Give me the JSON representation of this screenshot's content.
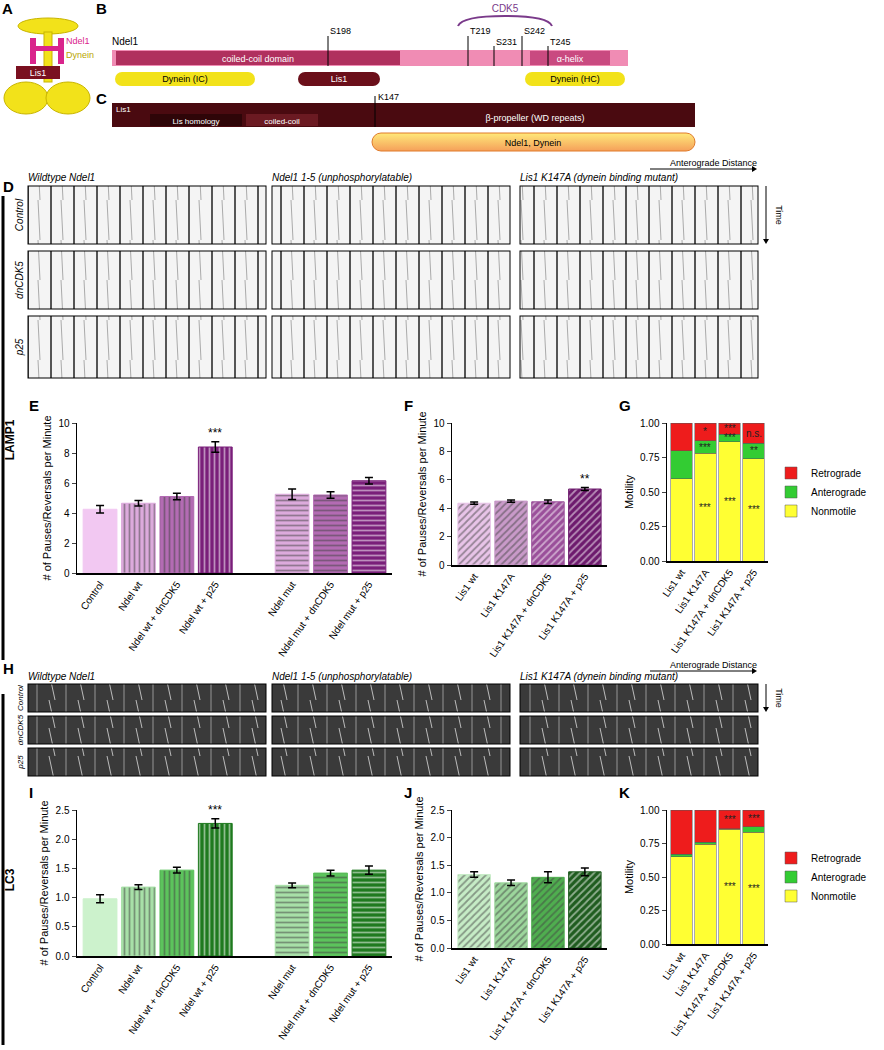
{
  "diagrams": {
    "A": {
      "panel": "A",
      "ndel1": "Ndel1",
      "dynein": "Dynein",
      "lis1": "Lis1"
    },
    "B": {
      "panel": "B",
      "protein": "Ndel1",
      "kinase": "CDK5",
      "sites": [
        "S198",
        "T219",
        "S231",
        "S242",
        "T245"
      ],
      "coiled_coil": "coiled-coil domain",
      "helix": "α-helix",
      "dynein_ic": "Dynein (IC)",
      "lis1": "Lis1",
      "dynein_hc": "Dynein (HC)"
    },
    "C": {
      "panel": "C",
      "protein": "Lis1",
      "site": "K147",
      "lis_homology": "Lis homology",
      "coiled_coil": "coiled-coil",
      "propeller": "β-propeller (WD repeats)",
      "binding": "Ndel1, Dynein"
    }
  },
  "kymographs": {
    "columns": [
      "Wildtype Ndel1",
      "Ndel1 1-5 (unphosphorylatable)",
      "Lis1 K147A (dynein binding mutant)"
    ],
    "rows": [
      "Control",
      "dnCDK5",
      "p25"
    ],
    "distance": "Anterograde Distance",
    "time": "Time",
    "panels": [
      {
        "panel": "D",
        "stain": "LAMP1"
      },
      {
        "panel": "H",
        "stain": "LC3"
      }
    ]
  },
  "chart_data": [
    {
      "panel": "E",
      "type": "bar",
      "categories": [
        "Control",
        "Ndel wt",
        "Ndel wt + dnCDK5",
        "Ndel wt + p25",
        null,
        "Ndel mut",
        "Ndel mut + dnCDK5",
        "Ndel mut + p25"
      ],
      "values": [
        4.25,
        4.65,
        5.1,
        8.4,
        null,
        5.25,
        5.2,
        6.15
      ],
      "errors": [
        0.25,
        0.18,
        0.22,
        0.35,
        null,
        0.35,
        0.22,
        0.22
      ],
      "colors": [
        "#f2c8f2",
        "#dcaadc",
        "#b36bb3",
        "#7a1f7a",
        null,
        "#dcaadc",
        "#b36bb3",
        "#7a1f7a"
      ],
      "y_label": "# of Pauses/Reversals per Minute",
      "ylim": [
        0,
        10
      ],
      "yticks": [
        0,
        2,
        4,
        6,
        8,
        10
      ],
      "annotations": [
        {
          "category": "Ndel wt + p25",
          "text": "***"
        }
      ]
    },
    {
      "panel": "F",
      "type": "bar",
      "categories": [
        "Lis1 wt",
        "Lis1 K147A",
        "Lis1 K147A + dnCDK5",
        "Lis1 K147A + p25"
      ],
      "values": [
        4.35,
        4.5,
        4.45,
        5.35
      ],
      "errors": [
        0.08,
        0.08,
        0.12,
        0.1
      ],
      "colors": [
        "#e8c4e8",
        "#c99ac9",
        "#9a4f9a",
        "#6d1a6d"
      ],
      "y_label": "# of Pauses/Reversals per Minute",
      "ylim": [
        0,
        10
      ],
      "yticks": [
        0,
        2,
        4,
        6,
        8,
        10
      ],
      "annotations": [
        {
          "category": "Lis1 K147A + p25",
          "text": "**"
        }
      ]
    },
    {
      "panel": "G",
      "type": "bar",
      "stacked": true,
      "legend": "right",
      "categories": [
        "Lis1 wt",
        "Lis1 K147A",
        "Lis1 K147A + dnCDK5",
        "Lis1 K147A + p25"
      ],
      "y_label": "Motility",
      "ylim": [
        0,
        1
      ],
      "yticks": [
        {
          "value": 0,
          "label": "0.00"
        },
        {
          "value": 0.25,
          "label": "0.25"
        },
        {
          "value": 0.5,
          "label": "0.50"
        },
        {
          "value": 0.75,
          "label": "0.75"
        },
        {
          "value": 1,
          "label": "1.00"
        }
      ],
      "series": [
        {
          "name": "Nonmotile",
          "color": "#ffff33",
          "values": [
            0.595,
            0.78,
            0.865,
            0.74
          ],
          "annotations": [
            null,
            "***",
            "***",
            "***"
          ]
        },
        {
          "name": "Anterograde",
          "color": "#33cc33",
          "values": [
            0.205,
            0.09,
            0.055,
            0.115
          ],
          "annotations": [
            null,
            "***",
            "***",
            "**"
          ]
        },
        {
          "name": "Retrograde",
          "color": "#ee1c1c",
          "values": [
            0.2,
            0.13,
            0.08,
            0.145
          ],
          "annotations": [
            null,
            "*",
            "***",
            "n.s."
          ]
        }
      ]
    },
    {
      "panel": "I",
      "type": "bar",
      "categories": [
        "Control",
        "Ndel wt",
        "Ndel wt + dnCDK5",
        "Ndel wt + p25",
        null,
        "Ndel mut",
        "Ndel mut + dnCDK5",
        "Ndel mut + p25"
      ],
      "values": [
        0.98,
        1.18,
        1.47,
        2.27,
        null,
        1.21,
        1.42,
        1.47
      ],
      "errors": [
        0.07,
        0.04,
        0.05,
        0.08,
        null,
        0.04,
        0.05,
        0.07
      ],
      "colors": [
        "#ccf2cc",
        "#a8e0a8",
        "#5cc45c",
        "#1f7a1f",
        null,
        "#a8e0a8",
        "#5cc45c",
        "#1f7a1f"
      ],
      "y_label": "# of Pauses/Reversals per Minute",
      "ylim": [
        0,
        2.5
      ],
      "yticks": [
        {
          "value": 0,
          "label": "0.0"
        },
        {
          "value": 0.5,
          "label": "0.5"
        },
        {
          "value": 1,
          "label": "1.0"
        },
        {
          "value": 1.5,
          "label": "1.5"
        },
        {
          "value": 2,
          "label": "2.0"
        },
        {
          "value": 2.5,
          "label": "2.5"
        }
      ],
      "annotations": [
        {
          "category": "Ndel wt + p25",
          "text": "***"
        }
      ]
    },
    {
      "panel": "J",
      "type": "bar",
      "categories": [
        "Lis1 wt",
        "Lis1 K147A",
        "Lis1 K147A + dnCDK5",
        "Lis1 K147A + p25"
      ],
      "values": [
        1.33,
        1.18,
        1.28,
        1.38
      ],
      "errors": [
        0.05,
        0.05,
        0.1,
        0.07
      ],
      "colors": [
        "#c6ecc6",
        "#9cd69c",
        "#4fae4f",
        "#1f5c1f"
      ],
      "y_label": "# of Pauses/Reversals per Minute",
      "ylim": [
        0,
        2.5
      ],
      "yticks": [
        {
          "value": 0,
          "label": "0.0"
        },
        {
          "value": 0.5,
          "label": "0.5"
        },
        {
          "value": 1,
          "label": "1.0"
        },
        {
          "value": 1.5,
          "label": "1.5"
        },
        {
          "value": 2,
          "label": "2.0"
        },
        {
          "value": 2.5,
          "label": "2.5"
        }
      ]
    },
    {
      "panel": "K",
      "type": "bar",
      "stacked": true,
      "legend": "right",
      "categories": [
        "Lis1 wt",
        "Lis1 K147A",
        "Lis1 K147A + dnCDK5",
        "Lis1 K147A + p25"
      ],
      "y_label": "Motility",
      "ylim": [
        0,
        1
      ],
      "yticks": [
        {
          "value": 0,
          "label": "0.00"
        },
        {
          "value": 0.25,
          "label": "0.25"
        },
        {
          "value": 0.5,
          "label": "0.50"
        },
        {
          "value": 0.75,
          "label": "0.75"
        },
        {
          "value": 1,
          "label": "1.00"
        }
      ],
      "series": [
        {
          "name": "Nonmotile",
          "color": "#ffff33",
          "values": [
            0.65,
            0.745,
            0.855,
            0.835
          ],
          "annotations": [
            null,
            null,
            "***",
            "***"
          ]
        },
        {
          "name": "Anterograde",
          "color": "#33cc33",
          "values": [
            0.02,
            0.015,
            0.005,
            0.04
          ],
          "annotations": [
            null,
            null,
            null,
            null
          ]
        },
        {
          "name": "Retrograde",
          "color": "#ee1c1c",
          "values": [
            0.33,
            0.24,
            0.14,
            0.125
          ],
          "annotations": [
            null,
            null,
            "***",
            "***"
          ]
        }
      ]
    }
  ]
}
